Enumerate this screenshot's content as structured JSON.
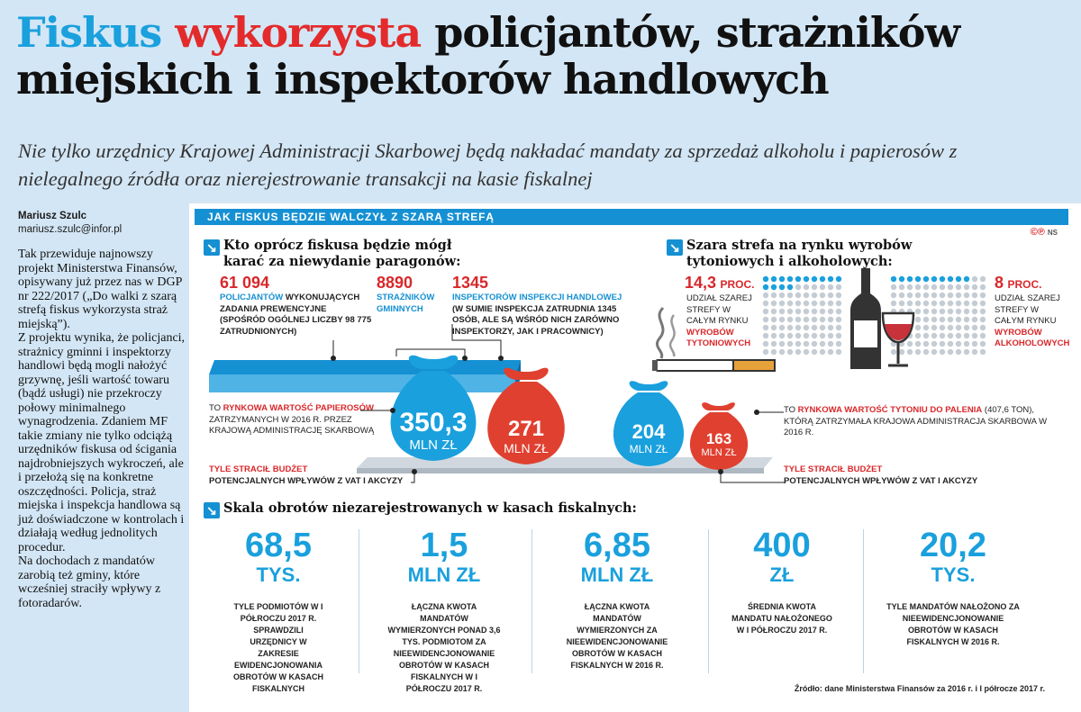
{
  "headline": {
    "word1": "Fiskus",
    "word2": "wykorzysta",
    "rest_line1": "policjantów, strażników",
    "line2": "miejskich i inspektorów handlowych"
  },
  "lead": "Nie tylko urzędnicy Krajowej Administracji Skarbowej będą nakładać mandaty za sprzedaż alkoholu i papierosów z nielegalnego źródła oraz nierejestrowanie transakcji na kasie fiskalnej",
  "author": {
    "name": "Mariusz Szulc",
    "email": "mariusz.szulc@infor.pl"
  },
  "article": [
    "Tak przewiduje najnowszy projekt Ministerstwa Finansów, opisywany już przez nas w DGP nr 222/2017 („Do walki z szarą strefą fiskus wykorzysta straż miejską”).",
    "Z projektu wynika, że policjanci, strażnicy gminni i inspektorzy handlowi będą mogli nałożyć grzywnę, jeśli wartość towaru (bądź usługi) nie przekroczy połowy minimalnego wynagrodzenia. Zdaniem MF takie zmiany nie tylko odciążą urzędników fiskusa od ścigania najdrobniejszych wykroczeń, ale i przełożą się na konkretne oszczędności. Policja, straż miejska i inspekcja handlowa są już doświadczone w kontrolach i działają według jednolitych procedur.",
    "Na dochodach z mandatów zarobią też gminy, które wcześniej straciły wpływy z fotoradarów."
  ],
  "bar_title": "Jak fiskus będzie walczył z szarą strefą",
  "copyright": {
    "symbols": "©℗",
    "initials": "NS"
  },
  "section1": {
    "title": "Kto oprócz fiskusa będzie mógł karać za niewydanie paragonów:",
    "items": [
      {
        "value": "61 094",
        "highlight": "policjantów",
        "text": "wykonujących zadania prewencyjne (spośród ogólnej liczby 98 775 zatrudnionych)"
      },
      {
        "value": "8890",
        "highlight": "strażników gminnych",
        "text": ""
      },
      {
        "value": "1345",
        "highlight": "inspektorów inspekcji handlowej",
        "text": "(w sumie inspekcja zatrudnia 1345 osób, ale są wśród nich zarówno inspektorzy, jak i pracownicy)"
      }
    ],
    "bags": [
      {
        "value": "350,3",
        "unit": "mln zł",
        "color": "#1aa0dd"
      },
      {
        "value": "271",
        "unit": "mln zł",
        "color": "#e04030"
      }
    ],
    "note_value_pre": "To",
    "note_value_hl": "rynkowa wartość papierosów",
    "note_value_post": "zatrzymanych w 2016 r. przez Krajową Administrację Skarbową",
    "note_loss_title": "Tyle stracił budżet",
    "note_loss_text": "potencjalnych wpływów z VAT i akcyzy"
  },
  "section2": {
    "title": "Szara strefa na rynku wyrobów tytoniowych i alkoholowych:",
    "tobacco": {
      "value": "14,3",
      "unit": "proc.",
      "text": "udział szarej strefy w całym rynku",
      "hl": "wyrobów tytoniowych"
    },
    "alcohol": {
      "value": "8",
      "unit": "proc.",
      "text": "udział szarej strefy w całym rynku",
      "hl": "wyrobów alkoholowych"
    },
    "bags": [
      {
        "value": "204",
        "unit": "mln zł",
        "color": "#1aa0dd"
      },
      {
        "value": "163",
        "unit": "mln zł",
        "color": "#e04030"
      }
    ],
    "note_value_pre": "To",
    "note_value_hl": "rynkowa wartość tytoniu do palenia",
    "note_value_post": "(407,6 ton), którą zatrzymała Krajowa Administracja Skarbowa w 2016 r.",
    "note_loss_title": "Tyle stracił budżet",
    "note_loss_text": "potencjalnych wpływów z VAT i akcyzy"
  },
  "section3": {
    "title": "Skala obrotów niezarejestrowanych w kasach fiskalnych:",
    "stats": [
      {
        "value": "68,5",
        "unit": "tys.",
        "desc": "tyle podmiotów w I półroczu 2017 r. sprawdzili urzędnicy w zakresie ewidencjonowania obrotów w kasach fiskalnych"
      },
      {
        "value": "1,5",
        "unit": "mln zł",
        "desc": "łączna kwota mandatów wymierzonych ponad 3,6 tys. podmiotom za nieewidencjonowanie obrotów w kasach fiskalnych w I półroczu 2017 r."
      },
      {
        "value": "6,85",
        "unit": "mln zł",
        "desc": "łączna kwota mandatów wymierzonych za nieewidencjonowanie obrotów w kasach fiskalnych w 2016 r."
      },
      {
        "value": "400",
        "unit": "zł",
        "desc": "średnia kwota mandatu nałożonego w I półroczu 2017 r."
      },
      {
        "value": "20,2",
        "unit": "tys.",
        "desc": "tyle mandatów nałożono za nieewidencjonowanie obrotów w kasach fiskalnych w 2016 r."
      }
    ]
  },
  "source": "Źródło: dane Ministerstwa Finansów za 2016 r. i I półrocze 2017 r."
}
